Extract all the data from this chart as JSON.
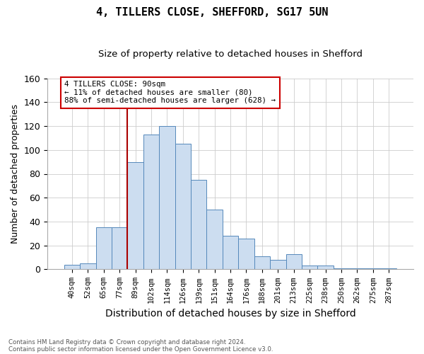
{
  "title": "4, TILLERS CLOSE, SHEFFORD, SG17 5UN",
  "subtitle": "Size of property relative to detached houses in Shefford",
  "xlabel": "Distribution of detached houses by size in Shefford",
  "ylabel": "Number of detached properties",
  "categories": [
    "40sqm",
    "52sqm",
    "65sqm",
    "77sqm",
    "89sqm",
    "102sqm",
    "114sqm",
    "126sqm",
    "139sqm",
    "151sqm",
    "164sqm",
    "176sqm",
    "188sqm",
    "201sqm",
    "213sqm",
    "225sqm",
    "238sqm",
    "250sqm",
    "262sqm",
    "275sqm",
    "287sqm"
  ],
  "values": [
    4,
    5,
    35,
    35,
    90,
    113,
    120,
    105,
    75,
    50,
    28,
    26,
    11,
    8,
    13,
    3,
    3,
    1,
    1,
    1,
    1
  ],
  "bar_color": "#ccddf0",
  "bar_edge_color": "#5588bb",
  "property_line_color": "#aa0000",
  "property_line_idx": 4,
  "annotation_line1": "4 TILLERS CLOSE: 90sqm",
  "annotation_line2": "← 11% of detached houses are smaller (80)",
  "annotation_line3": "88% of semi-detached houses are larger (628) →",
  "annotation_box_edge": "#cc0000",
  "footer1": "Contains HM Land Registry data © Crown copyright and database right 2024.",
  "footer2": "Contains public sector information licensed under the Open Government Licence v3.0.",
  "ylim": [
    0,
    160
  ],
  "yticks": [
    0,
    20,
    40,
    60,
    80,
    100,
    120,
    140,
    160
  ],
  "figsize": [
    6.0,
    5.0
  ],
  "dpi": 100,
  "bg_color": "#f0f4f8"
}
